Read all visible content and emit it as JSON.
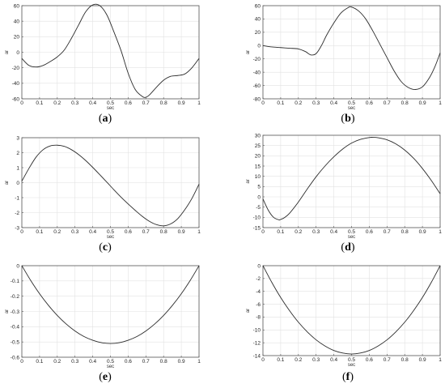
{
  "chart_data": [
    {
      "type": "line",
      "caption": "a",
      "xlabel": "sec",
      "ylabel": "ar",
      "xlim": [
        0,
        1
      ],
      "ylim": [
        -60,
        60
      ],
      "xticks": [
        0,
        0.1,
        0.2,
        0.3,
        0.4,
        0.5,
        0.6,
        0.7,
        0.8,
        0.9,
        1
      ],
      "yticks": [
        -60,
        -40,
        -20,
        0,
        20,
        40,
        60
      ],
      "grid": true,
      "x": [
        0,
        0.04,
        0.08,
        0.12,
        0.16,
        0.2,
        0.24,
        0.28,
        0.32,
        0.36,
        0.4,
        0.44,
        0.48,
        0.52,
        0.56,
        0.6,
        0.64,
        0.68,
        0.7,
        0.72,
        0.76,
        0.8,
        0.84,
        0.88,
        0.92,
        0.96,
        1
      ],
      "y": [
        -8,
        -17,
        -19,
        -17,
        -12,
        -6,
        3,
        18,
        35,
        52,
        61,
        60,
        48,
        26,
        2,
        -27,
        -48,
        -57,
        -58,
        -55,
        -45,
        -36,
        -31,
        -30,
        -28,
        -20,
        -8
      ]
    },
    {
      "type": "line",
      "caption": "b",
      "xlabel": "sec",
      "ylabel": "ar",
      "xlim": [
        0,
        1
      ],
      "ylim": [
        -80,
        60
      ],
      "xticks": [
        0,
        0.1,
        0.2,
        0.3,
        0.4,
        0.5,
        0.6,
        0.7,
        0.8,
        0.9,
        1
      ],
      "yticks": [
        -80,
        -60,
        -40,
        -20,
        0,
        20,
        40,
        60
      ],
      "grid": true,
      "x": [
        0,
        0.05,
        0.1,
        0.15,
        0.2,
        0.24,
        0.27,
        0.3,
        0.33,
        0.36,
        0.4,
        0.44,
        0.48,
        0.5,
        0.54,
        0.58,
        0.62,
        0.66,
        0.7,
        0.74,
        0.78,
        0.82,
        0.86,
        0.9,
        0.94,
        0.97,
        1
      ],
      "y": [
        0,
        -2,
        -3,
        -4,
        -5,
        -9,
        -14,
        -12,
        0,
        16,
        34,
        49,
        57,
        58,
        52,
        40,
        22,
        2,
        -18,
        -38,
        -54,
        -63,
        -66,
        -62,
        -48,
        -32,
        -11
      ]
    },
    {
      "type": "line",
      "caption": "c",
      "xlabel": "sec",
      "ylabel": "ar",
      "xlim": [
        0,
        1
      ],
      "ylim": [
        -3,
        3
      ],
      "xticks": [
        0,
        0.1,
        0.2,
        0.3,
        0.4,
        0.5,
        0.6,
        0.7,
        0.8,
        0.9,
        1
      ],
      "yticks": [
        -3,
        -2,
        -1,
        0,
        1,
        2,
        3
      ],
      "grid": true,
      "x": [
        0,
        0.04,
        0.08,
        0.12,
        0.16,
        0.2,
        0.24,
        0.28,
        0.32,
        0.36,
        0.4,
        0.44,
        0.48,
        0.52,
        0.56,
        0.6,
        0.64,
        0.68,
        0.72,
        0.76,
        0.8,
        0.84,
        0.88,
        0.92,
        0.96,
        1
      ],
      "y": [
        0.1,
        0.95,
        1.7,
        2.2,
        2.45,
        2.5,
        2.42,
        2.2,
        1.88,
        1.48,
        1.02,
        0.53,
        0.03,
        -0.48,
        -0.97,
        -1.42,
        -1.85,
        -2.25,
        -2.58,
        -2.8,
        -2.88,
        -2.75,
        -2.4,
        -1.8,
        -1.05,
        -0.1
      ]
    },
    {
      "type": "line",
      "caption": "d",
      "xlabel": "sec",
      "ylabel": "ar",
      "xlim": [
        0,
        1
      ],
      "ylim": [
        -15,
        30
      ],
      "xticks": [
        0,
        0.1,
        0.2,
        0.3,
        0.4,
        0.5,
        0.6,
        0.7,
        0.8,
        0.9,
        1
      ],
      "yticks": [
        -15,
        -10,
        -5,
        0,
        5,
        10,
        15,
        20,
        25,
        30
      ],
      "grid": true,
      "x": [
        0,
        0.03,
        0.06,
        0.09,
        0.1,
        0.12,
        0.15,
        0.2,
        0.25,
        0.3,
        0.35,
        0.4,
        0.45,
        0.5,
        0.55,
        0.6,
        0.62,
        0.65,
        0.7,
        0.75,
        0.8,
        0.85,
        0.9,
        0.95,
        1
      ],
      "y": [
        -1,
        -6.5,
        -10,
        -11.2,
        -11,
        -10.2,
        -8,
        -2.5,
        3.8,
        9.8,
        15,
        19.5,
        23.3,
        26.2,
        28,
        28.9,
        29,
        28.8,
        27.8,
        25.8,
        22.8,
        18.8,
        13.8,
        8,
        1.5
      ]
    },
    {
      "type": "line",
      "caption": "e",
      "xlabel": "sec",
      "ylabel": "ar",
      "xlim": [
        0,
        1
      ],
      "ylim": [
        -0.6,
        0
      ],
      "xticks": [
        0,
        0.1,
        0.2,
        0.3,
        0.4,
        0.5,
        0.6,
        0.7,
        0.8,
        0.9,
        1
      ],
      "yticks": [
        -0.6,
        -0.5,
        -0.4,
        -0.3,
        -0.2,
        -0.1,
        0
      ],
      "grid": true,
      "x": [
        0,
        0.05,
        0.1,
        0.15,
        0.2,
        0.25,
        0.3,
        0.35,
        0.4,
        0.45,
        0.5,
        0.55,
        0.6,
        0.65,
        0.7,
        0.75,
        0.8,
        0.85,
        0.9,
        0.95,
        1
      ],
      "y": [
        0,
        -0.097,
        -0.184,
        -0.26,
        -0.326,
        -0.382,
        -0.428,
        -0.464,
        -0.489,
        -0.505,
        -0.51,
        -0.505,
        -0.489,
        -0.464,
        -0.428,
        -0.382,
        -0.326,
        -0.26,
        -0.184,
        -0.097,
        0
      ]
    },
    {
      "type": "line",
      "caption": "f",
      "xlabel": "sec",
      "ylabel": "ar",
      "xlim": [
        0,
        1
      ],
      "ylim": [
        -14,
        0
      ],
      "xticks": [
        0,
        0.1,
        0.2,
        0.3,
        0.4,
        0.5,
        0.6,
        0.7,
        0.8,
        0.9,
        1
      ],
      "yticks": [
        -14,
        -12,
        -10,
        -8,
        -6,
        -4,
        -2,
        0
      ],
      "grid": true,
      "x": [
        0,
        0.05,
        0.1,
        0.15,
        0.2,
        0.25,
        0.3,
        0.35,
        0.4,
        0.45,
        0.5,
        0.55,
        0.6,
        0.65,
        0.7,
        0.75,
        0.8,
        0.85,
        0.9,
        0.95,
        1
      ],
      "y": [
        0,
        -2.6,
        -4.95,
        -7.0,
        -8.8,
        -10.3,
        -11.55,
        -12.5,
        -13.2,
        -13.6,
        -13.75,
        -13.6,
        -13.2,
        -12.5,
        -11.55,
        -10.3,
        -8.8,
        -7.0,
        -4.95,
        -2.6,
        0
      ]
    }
  ]
}
